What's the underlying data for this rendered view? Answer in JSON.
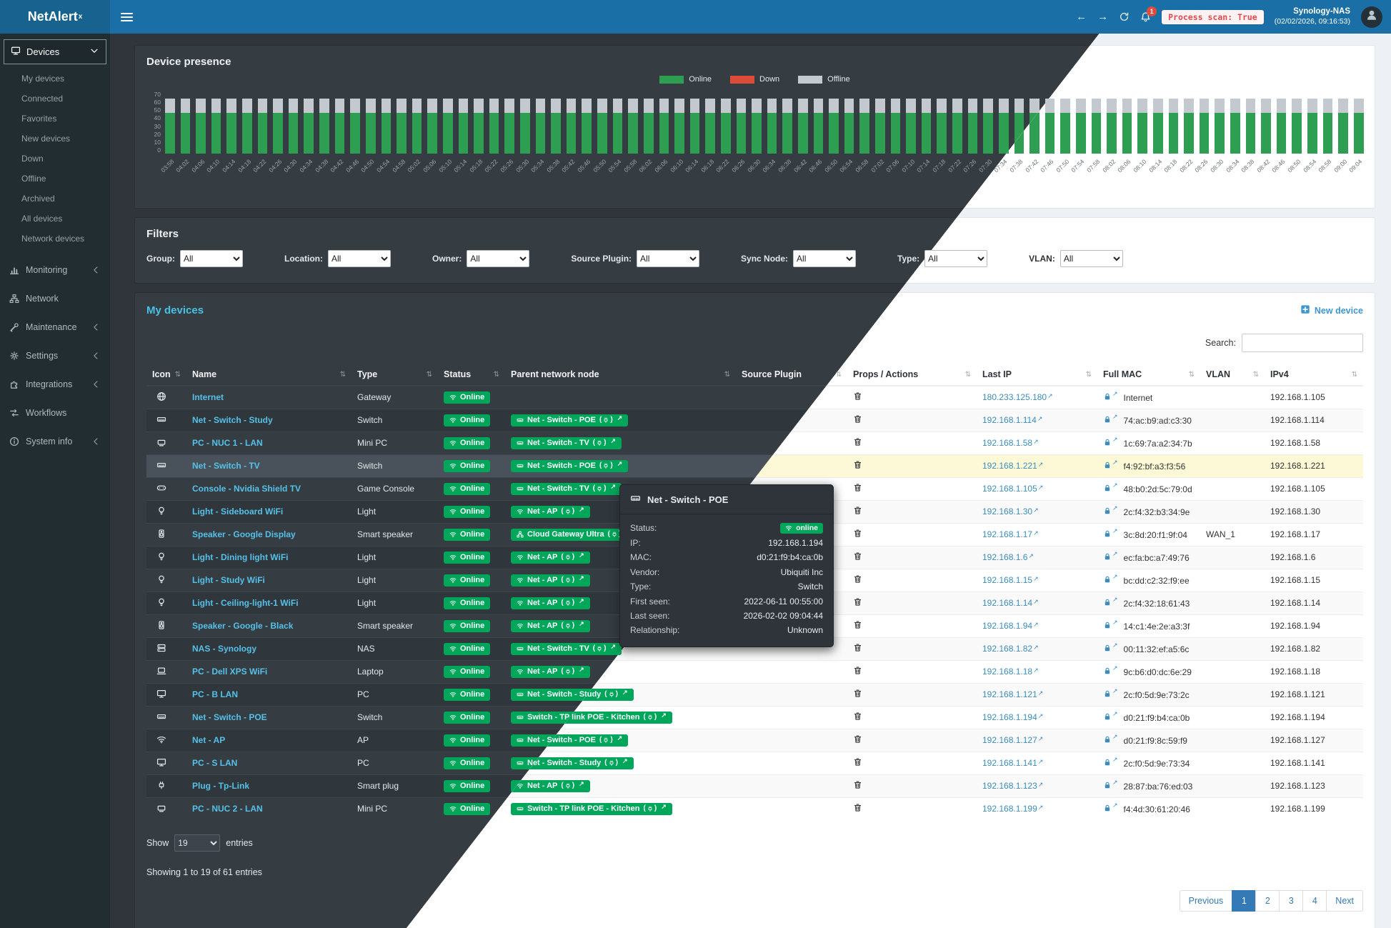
{
  "header": {
    "logo_main": "NetAlert",
    "logo_sup": "x",
    "back_glyph": "←",
    "forward_glyph": "→",
    "notification_count": "1",
    "scan_status": "Process scan: True",
    "host_name": "Synology-NAS",
    "timestamp": "(02/02/2026, 09:16:53)"
  },
  "sidebar": {
    "devices_label": "Devices",
    "devices_items": [
      "My devices",
      "Connected",
      "Favorites",
      "New devices",
      "Down",
      "Offline",
      "Archived",
      "All devices",
      "Network devices"
    ],
    "sections": [
      {
        "label": "Monitoring",
        "icon": "chart",
        "chevron": true
      },
      {
        "label": "Network",
        "icon": "sitemap",
        "chevron": false
      },
      {
        "label": "Maintenance",
        "icon": "wrench",
        "chevron": true
      },
      {
        "label": "Settings",
        "icon": "gear",
        "chevron": true
      },
      {
        "label": "Integrations",
        "icon": "puzzle",
        "chevron": true
      },
      {
        "label": "Workflows",
        "icon": "workflow",
        "chevron": false
      },
      {
        "label": "System info",
        "icon": "info",
        "chevron": true
      }
    ]
  },
  "presence": {
    "title": "Device presence"
  },
  "chart_data": {
    "type": "bar",
    "stacked": true,
    "title": "Device presence",
    "xlabel": "",
    "ylabel": "",
    "ylim": [
      0,
      70
    ],
    "yticks": [
      70,
      60,
      50,
      40,
      30,
      20,
      10,
      0
    ],
    "legend_position": "top",
    "x": [
      "03:58",
      "04:02",
      "04:06",
      "04:10",
      "04:14",
      "04:18",
      "04:22",
      "04:26",
      "04:30",
      "04:34",
      "04:38",
      "04:42",
      "04:46",
      "04:50",
      "04:54",
      "04:58",
      "05:02",
      "05:06",
      "05:10",
      "05:14",
      "05:18",
      "05:22",
      "05:26",
      "05:30",
      "05:34",
      "05:38",
      "05:42",
      "05:46",
      "05:50",
      "05:54",
      "05:58",
      "06:02",
      "06:06",
      "06:10",
      "06:14",
      "06:18",
      "06:22",
      "06:26",
      "06:30",
      "06:34",
      "06:38",
      "06:42",
      "06:46",
      "06:50",
      "06:54",
      "06:58",
      "07:02",
      "07:06",
      "07:10",
      "07:14",
      "07:18",
      "07:22",
      "07:26",
      "07:30",
      "07:34",
      "07:38",
      "07:42",
      "07:46",
      "07:50",
      "07:54",
      "07:58",
      "08:02",
      "08:06",
      "08:10",
      "08:14",
      "08:18",
      "08:22",
      "08:26",
      "08:30",
      "08:34",
      "08:38",
      "08:42",
      "08:46",
      "08:50",
      "08:54",
      "08:58",
      "09:00",
      "09:04"
    ],
    "series": [
      {
        "name": "Online",
        "color": "#2e9e52",
        "values": [
          45,
          45,
          45,
          45,
          45,
          45,
          45,
          45,
          45,
          45,
          45,
          45,
          45,
          45,
          45,
          45,
          45,
          45,
          45,
          45,
          45,
          45,
          45,
          45,
          45,
          45,
          45,
          45,
          45,
          45,
          45,
          45,
          45,
          45,
          45,
          45,
          45,
          45,
          45,
          45,
          45,
          45,
          45,
          45,
          45,
          45,
          45,
          45,
          45,
          45,
          45,
          45,
          45,
          45,
          45,
          45,
          45,
          45,
          45,
          45,
          45,
          45,
          45,
          45,
          45,
          45,
          45,
          45,
          45,
          45,
          45,
          45,
          45,
          45,
          45,
          45,
          45,
          45
        ]
      },
      {
        "name": "Down",
        "color": "#dd4b39",
        "values": [
          0,
          0,
          0,
          0,
          0,
          0,
          0,
          0,
          0,
          0,
          0,
          0,
          0,
          0,
          0,
          0,
          0,
          0,
          0,
          0,
          0,
          0,
          0,
          0,
          0,
          0,
          0,
          0,
          0,
          0,
          0,
          0,
          0,
          0,
          0,
          0,
          0,
          0,
          0,
          0,
          0,
          0,
          0,
          0,
          0,
          0,
          0,
          0,
          0,
          0,
          0,
          0,
          0,
          0,
          0,
          0,
          0,
          0,
          0,
          0,
          0,
          0,
          0,
          0,
          0,
          0,
          0,
          0,
          0,
          0,
          0,
          0,
          0,
          0,
          0,
          0,
          0,
          0
        ]
      },
      {
        "name": "Offline",
        "color": "#c3c9ce",
        "values": [
          16,
          16,
          16,
          16,
          16,
          16,
          16,
          16,
          16,
          16,
          16,
          16,
          16,
          16,
          16,
          16,
          16,
          16,
          16,
          16,
          16,
          16,
          16,
          16,
          16,
          16,
          16,
          16,
          16,
          16,
          16,
          16,
          16,
          16,
          16,
          16,
          16,
          16,
          16,
          16,
          16,
          16,
          16,
          16,
          16,
          16,
          16,
          16,
          16,
          16,
          16,
          16,
          16,
          16,
          16,
          16,
          16,
          16,
          16,
          16,
          16,
          16,
          16,
          16,
          16,
          16,
          16,
          16,
          16,
          16,
          16,
          16,
          16,
          16,
          16,
          16,
          16,
          16
        ]
      }
    ]
  },
  "filters": {
    "title": "Filters",
    "items": [
      {
        "label": "Group:",
        "value": "All"
      },
      {
        "label": "Location:",
        "value": "All"
      },
      {
        "label": "Owner:",
        "value": "All"
      },
      {
        "label": "Source Plugin:",
        "value": "All"
      },
      {
        "label": "Sync Node:",
        "value": "All"
      },
      {
        "label": "Type:",
        "value": "All"
      },
      {
        "label": "VLAN:",
        "value": "All"
      }
    ]
  },
  "devices_panel": {
    "title": "My devices",
    "new_device_label": "New device",
    "search_label": "Search:",
    "sort_glyph": "⇅",
    "ext_glyph": "↗",
    "columns": [
      "Icon",
      "Name",
      "Type",
      "Status",
      "Parent network node",
      "Source Plugin",
      "Props / Actions",
      "Last IP",
      "Full MAC",
      "VLAN",
      "IPv4"
    ],
    "rows": [
      {
        "icon": "globe",
        "name": "Internet",
        "type": "Gateway",
        "status": "Online",
        "parent": null,
        "source_plugin": "",
        "last_ip": "180.233.125.180",
        "mac": "Internet",
        "vlan": "",
        "ipv4": "192.168.1.105",
        "highlight": false
      },
      {
        "icon": "ethernet",
        "name": "Net - Switch - Study",
        "type": "Switch",
        "status": "Online",
        "parent": {
          "label": "Net - Switch - POE",
          "icon": "ethernet"
        },
        "source_plugin": "",
        "last_ip": "192.168.1.114",
        "mac": "74:ac:b9:ad:c3:30",
        "vlan": "",
        "ipv4": "192.168.1.114",
        "highlight": false
      },
      {
        "icon": "minipc",
        "name": "PC - NUC 1 - LAN",
        "type": "Mini PC",
        "status": "Online",
        "parent": {
          "label": "Net - Switch - TV",
          "icon": "ethernet"
        },
        "source_plugin": "",
        "last_ip": "192.168.1.58",
        "mac": "1c:69:7a:a2:34:7b",
        "vlan": "",
        "ipv4": "192.168.1.58",
        "highlight": false
      },
      {
        "icon": "ethernet",
        "name": "Net - Switch - TV",
        "type": "Switch",
        "status": "Online",
        "parent": {
          "label": "Net - Switch - POE",
          "icon": "ethernet"
        },
        "source_plugin": "",
        "last_ip": "192.168.1.221",
        "mac": "f4:92:bf:a3:f3:56",
        "vlan": "",
        "ipv4": "192.168.1.221",
        "highlight": true
      },
      {
        "icon": "gamepad",
        "name": "Console - Nvidia Shield TV",
        "type": "Game Console",
        "status": "Online",
        "parent": {
          "label": "Net - Switch - TV",
          "icon": "ethernet"
        },
        "source_plugin": "",
        "last_ip": "192.168.1.105",
        "mac": "48:b0:2d:5c:79:0d",
        "vlan": "",
        "ipv4": "192.168.1.105",
        "highlight": false
      },
      {
        "icon": "bulb",
        "name": "Light - Sideboard WiFi",
        "type": "Light",
        "status": "Online",
        "parent": {
          "label": "Net - AP",
          "icon": "wifi"
        },
        "source_plugin": "",
        "last_ip": "192.168.1.30",
        "mac": "2c:f4:32:b3:34:9e",
        "vlan": "",
        "ipv4": "192.168.1.30",
        "highlight": false
      },
      {
        "icon": "speaker",
        "name": "Speaker - Google Display",
        "type": "Smart speaker",
        "status": "Online",
        "parent": {
          "label": "Cloud Gateway Ultra",
          "icon": "sitemap"
        },
        "source_plugin": "",
        "last_ip": "192.168.1.17",
        "mac": "3c:8d:20:f1:9f:04",
        "vlan": "WAN_1",
        "ipv4": "192.168.1.17",
        "highlight": false
      },
      {
        "icon": "bulb",
        "name": "Light - Dining light WiFi",
        "type": "Light",
        "status": "Online",
        "parent": {
          "label": "Net - AP",
          "icon": "wifi"
        },
        "source_plugin": "",
        "last_ip": "192.168.1.6",
        "mac": "ec:fa:bc:a7:49:76",
        "vlan": "",
        "ipv4": "192.168.1.6",
        "highlight": false
      },
      {
        "icon": "bulb",
        "name": "Light - Study WiFi",
        "type": "Light",
        "status": "Online",
        "parent": {
          "label": "Net - AP",
          "icon": "wifi"
        },
        "source_plugin": "",
        "last_ip": "192.168.1.15",
        "mac": "bc:dd:c2:32:f9:ee",
        "vlan": "",
        "ipv4": "192.168.1.15",
        "highlight": false
      },
      {
        "icon": "bulb",
        "name": "Light - Ceiling-light-1 WiFi",
        "type": "Light",
        "status": "Online",
        "parent": {
          "label": "Net - AP",
          "icon": "wifi"
        },
        "source_plugin": "",
        "last_ip": "192.168.1.14",
        "mac": "2c:f4:32:18:61:43",
        "vlan": "",
        "ipv4": "192.168.1.14",
        "highlight": false
      },
      {
        "icon": "speaker",
        "name": "Speaker - Google - Black",
        "type": "Smart speaker",
        "status": "Online",
        "parent": {
          "label": "Net - AP",
          "icon": "wifi"
        },
        "source_plugin": "",
        "last_ip": "192.168.1.94",
        "mac": "14:c1:4e:2e:a3:3f",
        "vlan": "",
        "ipv4": "192.168.1.94",
        "highlight": false
      },
      {
        "icon": "nas",
        "name": "NAS - Synology",
        "type": "NAS",
        "status": "Online",
        "parent": {
          "label": "Net - Switch - TV",
          "icon": "ethernet"
        },
        "source_plugin": "",
        "last_ip": "192.168.1.82",
        "mac": "00:11:32:ef:a5:6c",
        "vlan": "",
        "ipv4": "192.168.1.82",
        "highlight": false
      },
      {
        "icon": "laptop",
        "name": "PC - Dell XPS WiFi",
        "type": "Laptop",
        "status": "Online",
        "parent": {
          "label": "Net - AP",
          "icon": "wifi"
        },
        "source_plugin": "",
        "last_ip": "192.168.1.18",
        "mac": "9c:b6:d0:dc:6e:29",
        "vlan": "",
        "ipv4": "192.168.1.18",
        "highlight": false
      },
      {
        "icon": "desktop",
        "name": "PC - B LAN",
        "type": "PC",
        "status": "Online",
        "parent": {
          "label": "Net - Switch - Study",
          "icon": "ethernet"
        },
        "source_plugin": "",
        "last_ip": "192.168.1.121",
        "mac": "2c:f0:5d:9e:73:2c",
        "vlan": "",
        "ipv4": "192.168.1.121",
        "highlight": false
      },
      {
        "icon": "ethernet",
        "name": "Net - Switch - POE",
        "type": "Switch",
        "status": "Online",
        "parent": {
          "label": "Switch - TP link POE - Kitchen",
          "icon": "ethernet"
        },
        "source_plugin": "",
        "last_ip": "192.168.1.194",
        "mac": "d0:21:f9:b4:ca:0b",
        "vlan": "",
        "ipv4": "192.168.1.194",
        "highlight": false
      },
      {
        "icon": "wifi",
        "name": "Net - AP",
        "type": "AP",
        "status": "Online",
        "parent": {
          "label": "Net - Switch - POE",
          "icon": "ethernet"
        },
        "source_plugin": "",
        "last_ip": "192.168.1.127",
        "mac": "d0:21:f9:8c:59:f9",
        "vlan": "",
        "ipv4": "192.168.1.127",
        "highlight": false
      },
      {
        "icon": "desktop",
        "name": "PC - S LAN",
        "type": "PC",
        "status": "Online",
        "parent": {
          "label": "Net - Switch - Study",
          "icon": "ethernet"
        },
        "source_plugin": "",
        "last_ip": "192.168.1.141",
        "mac": "2c:f0:5d:9e:73:34",
        "vlan": "",
        "ipv4": "192.168.1.141",
        "highlight": false
      },
      {
        "icon": "plug",
        "name": "Plug - Tp-Link",
        "type": "Smart plug",
        "status": "Online",
        "parent": {
          "label": "Net - AP",
          "icon": "wifi"
        },
        "source_plugin": "",
        "last_ip": "192.168.1.123",
        "mac": "28:87:ba:76:ed:03",
        "vlan": "",
        "ipv4": "192.168.1.123",
        "highlight": false
      },
      {
        "icon": "minipc",
        "name": "PC - NUC 2 - LAN",
        "type": "Mini PC",
        "status": "Online",
        "parent": {
          "label": "Switch - TP link POE - Kitchen",
          "icon": "ethernet"
        },
        "source_plugin": "",
        "last_ip": "192.168.1.199",
        "mac": "f4:4d:30:61:20:46",
        "vlan": "",
        "ipv4": "192.168.1.199",
        "highlight": false
      }
    ],
    "show_label": "Show",
    "show_value": "19",
    "entries_label": "entries",
    "summary": "Showing 1 to 19 of 61 entries",
    "pagination": {
      "previous": "Previous",
      "pages": [
        "1",
        "2",
        "3",
        "4"
      ],
      "active_index": 0,
      "next": "Next"
    }
  },
  "tooltip": {
    "title": "Net - Switch - POE",
    "rows": [
      {
        "label": "Status:",
        "value": "online",
        "badge": true
      },
      {
        "label": "IP:",
        "value": "192.168.1.194"
      },
      {
        "label": "MAC:",
        "value": "d0:21:f9:b4:ca:0b"
      },
      {
        "label": "Vendor:",
        "value": "Ubiquiti Inc"
      },
      {
        "label": "Type:",
        "value": "Switch"
      },
      {
        "label": "First seen:",
        "value": "2022-06-11 00:55:00"
      },
      {
        "label": "Last seen:",
        "value": "2026-02-02 09:04:44"
      },
      {
        "label": "Relationship:",
        "value": "Unknown"
      }
    ]
  }
}
